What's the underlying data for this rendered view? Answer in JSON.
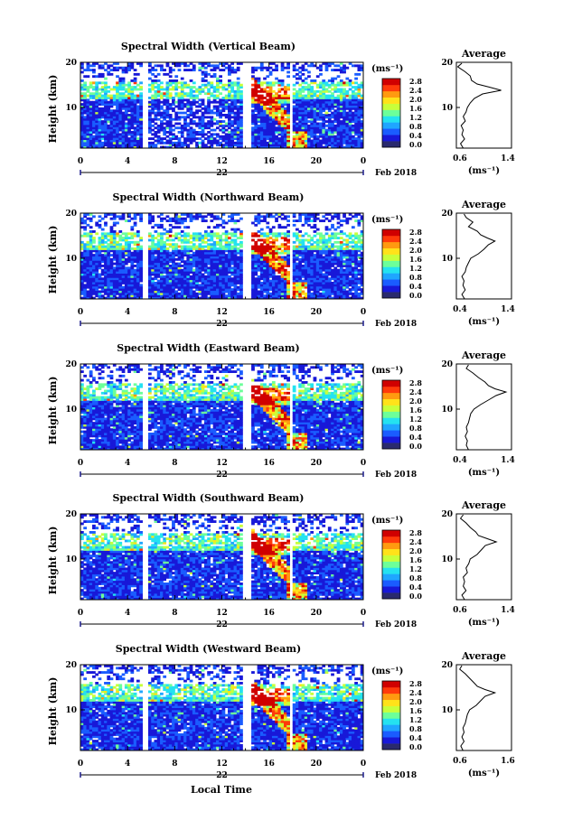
{
  "figure": {
    "xlabel": "Local Time",
    "x_ticks": [
      "0",
      "4",
      "8",
      "12",
      "16",
      "20",
      "0"
    ],
    "y_ticks": [
      "20",
      "10"
    ],
    "ylabel": "Height (km)",
    "day_label": "22",
    "month_label": "Feb 2018",
    "colorbar_unit": "(ms⁻¹)",
    "colorbar_ticks": [
      "2.8",
      "2.4",
      "2.0",
      "1.6",
      "1.2",
      "0.8",
      "0.4",
      "0.0"
    ],
    "colorbar_colors": [
      "#2a2a6e",
      "#1818d8",
      "#1a5cff",
      "#1fa6ff",
      "#24e2f0",
      "#6cff9a",
      "#c8ff3a",
      "#ffe21a",
      "#ff9a10",
      "#ff3a0a",
      "#d00000"
    ],
    "average_title": "Average",
    "average_unit": "(ms⁻¹)"
  },
  "chart_data": [
    {
      "type": "heatmap",
      "title": "Spectral Width (Vertical Beam)",
      "xlim": [
        0,
        24
      ],
      "ylim": [
        1,
        20
      ],
      "zlim": [
        0,
        2.8
      ],
      "data_gaps_hours": [
        [
          5.3,
          5.8
        ],
        [
          13.8,
          14.4
        ],
        [
          17.7,
          18.1
        ]
      ],
      "average_profile": {
        "xlim": [
          0.6,
          1.4
        ],
        "x_ticks": [
          "0.6",
          "1.4"
        ],
        "points": [
          [
            0.7,
            1.0
          ],
          [
            0.66,
            2.0
          ],
          [
            0.72,
            3.0
          ],
          [
            0.68,
            4.0
          ],
          [
            0.7,
            5.0
          ],
          [
            0.67,
            6.0
          ],
          [
            0.73,
            7.0
          ],
          [
            0.7,
            8.0
          ],
          [
            0.74,
            9.0
          ],
          [
            0.76,
            10.0
          ],
          [
            0.8,
            11.0
          ],
          [
            0.86,
            12.0
          ],
          [
            0.98,
            13.0
          ],
          [
            1.25,
            13.8
          ],
          [
            1.08,
            14.5
          ],
          [
            0.9,
            15.2
          ],
          [
            0.82,
            16.0
          ],
          [
            0.8,
            17.0
          ],
          [
            0.72,
            18.0
          ],
          [
            0.62,
            19.0
          ],
          [
            0.68,
            19.8
          ]
        ]
      }
    },
    {
      "type": "heatmap",
      "title": "Spectral Width (Northward Beam)",
      "xlim": [
        0,
        24
      ],
      "ylim": [
        1,
        20
      ],
      "zlim": [
        0,
        2.8
      ],
      "data_gaps_hours": [
        [
          5.3,
          5.8
        ],
        [
          13.8,
          14.4
        ],
        [
          17.7,
          18.1
        ]
      ],
      "average_profile": {
        "xlim": [
          0.4,
          1.4
        ],
        "x_ticks": [
          "0.4",
          "1.4"
        ],
        "points": [
          [
            0.55,
            1.0
          ],
          [
            0.5,
            2.0
          ],
          [
            0.56,
            3.0
          ],
          [
            0.52,
            4.0
          ],
          [
            0.54,
            5.0
          ],
          [
            0.5,
            6.0
          ],
          [
            0.56,
            7.0
          ],
          [
            0.58,
            8.0
          ],
          [
            0.62,
            9.0
          ],
          [
            0.66,
            10.0
          ],
          [
            0.8,
            11.0
          ],
          [
            0.9,
            12.0
          ],
          [
            0.98,
            13.0
          ],
          [
            1.1,
            13.8
          ],
          [
            0.96,
            14.5
          ],
          [
            0.84,
            15.2
          ],
          [
            0.78,
            16.0
          ],
          [
            0.62,
            17.0
          ],
          [
            0.7,
            18.0
          ],
          [
            0.58,
            19.0
          ],
          [
            0.54,
            19.8
          ]
        ]
      }
    },
    {
      "type": "heatmap",
      "title": "Spectral Width (Eastward Beam)",
      "xlim": [
        0,
        24
      ],
      "ylim": [
        1,
        20
      ],
      "zlim": [
        0,
        2.8
      ],
      "data_gaps_hours": [
        [
          5.3,
          5.8
        ],
        [
          13.8,
          14.4
        ],
        [
          17.7,
          18.1
        ]
      ],
      "average_profile": {
        "xlim": [
          0.4,
          1.4
        ],
        "x_ticks": [
          "0.4",
          "1.4"
        ],
        "points": [
          [
            0.62,
            1.0
          ],
          [
            0.58,
            2.0
          ],
          [
            0.6,
            3.0
          ],
          [
            0.56,
            4.0
          ],
          [
            0.6,
            5.0
          ],
          [
            0.58,
            6.0
          ],
          [
            0.62,
            7.0
          ],
          [
            0.64,
            8.0
          ],
          [
            0.66,
            9.0
          ],
          [
            0.72,
            10.0
          ],
          [
            0.84,
            11.0
          ],
          [
            0.98,
            12.0
          ],
          [
            1.12,
            13.0
          ],
          [
            1.3,
            13.8
          ],
          [
            1.1,
            14.5
          ],
          [
            0.98,
            15.2
          ],
          [
            0.92,
            16.0
          ],
          [
            0.8,
            17.0
          ],
          [
            0.7,
            18.0
          ],
          [
            0.58,
            19.0
          ],
          [
            0.62,
            19.8
          ]
        ]
      }
    },
    {
      "type": "heatmap",
      "title": "Spectral Width (Southward Beam)",
      "xlim": [
        0,
        24
      ],
      "ylim": [
        1,
        20
      ],
      "zlim": [
        0,
        2.8
      ],
      "data_gaps_hours": [
        [
          5.3,
          5.8
        ],
        [
          13.8,
          14.4
        ],
        [
          17.7,
          18.1
        ]
      ],
      "average_profile": {
        "xlim": [
          0.6,
          1.4
        ],
        "x_ticks": [
          "0.6",
          "1.4"
        ],
        "points": [
          [
            0.72,
            1.0
          ],
          [
            0.68,
            2.0
          ],
          [
            0.74,
            3.0
          ],
          [
            0.7,
            4.0
          ],
          [
            0.72,
            5.0
          ],
          [
            0.7,
            6.0
          ],
          [
            0.76,
            7.0
          ],
          [
            0.74,
            8.0
          ],
          [
            0.78,
            9.0
          ],
          [
            0.8,
            10.0
          ],
          [
            0.9,
            11.0
          ],
          [
            0.96,
            12.0
          ],
          [
            1.02,
            13.0
          ],
          [
            1.18,
            13.8
          ],
          [
            1.05,
            14.5
          ],
          [
            0.92,
            15.2
          ],
          [
            0.88,
            16.0
          ],
          [
            0.8,
            17.0
          ],
          [
            0.74,
            18.0
          ],
          [
            0.66,
            19.0
          ],
          [
            0.7,
            19.8
          ]
        ]
      }
    },
    {
      "type": "heatmap",
      "title": "Spectral Width (Westward Beam)",
      "xlim": [
        0,
        24
      ],
      "ylim": [
        1,
        20
      ],
      "zlim": [
        0,
        2.8
      ],
      "data_gaps_hours": [
        [
          5.3,
          5.8
        ],
        [
          13.8,
          14.4
        ],
        [
          17.7,
          18.1
        ]
      ],
      "average_profile": {
        "xlim": [
          0.6,
          1.6
        ],
        "x_ticks": [
          "0.6",
          "1.6"
        ],
        "points": [
          [
            0.72,
            1.0
          ],
          [
            0.68,
            2.0
          ],
          [
            0.74,
            3.0
          ],
          [
            0.7,
            4.0
          ],
          [
            0.74,
            5.0
          ],
          [
            0.72,
            6.0
          ],
          [
            0.76,
            7.0
          ],
          [
            0.78,
            8.0
          ],
          [
            0.8,
            9.0
          ],
          [
            0.84,
            10.0
          ],
          [
            0.96,
            11.0
          ],
          [
            1.04,
            12.0
          ],
          [
            1.12,
            13.0
          ],
          [
            1.3,
            13.8
          ],
          [
            1.12,
            14.5
          ],
          [
            0.98,
            15.2
          ],
          [
            0.92,
            16.0
          ],
          [
            0.84,
            17.0
          ],
          [
            0.76,
            18.0
          ],
          [
            0.66,
            19.0
          ],
          [
            0.7,
            19.8
          ]
        ]
      }
    }
  ]
}
